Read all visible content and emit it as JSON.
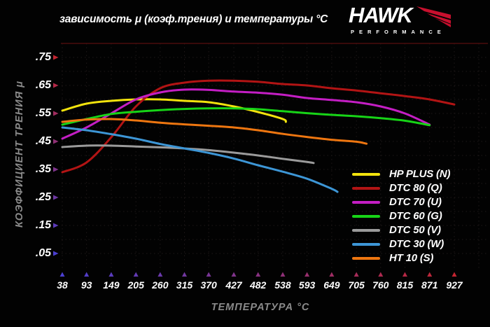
{
  "logo": {
    "brand": "HAWK",
    "subtext": "PERFORMANCE"
  },
  "layout_colors": {
    "background": "#020202",
    "grid": "#1e1818",
    "top_border": "#4a0d0d",
    "axis_red": "#c42531",
    "axis_purple": "#8c2da0",
    "axis_blue": "#4b3fd1",
    "axis_title_gray": "#8a8a8a",
    "logo_red": "#c8102e"
  },
  "chart_data": {
    "type": "line",
    "title": "зависимость μ (коэф.трения) и температуры °C",
    "xlabel": "ТЕМПЕРАТУРА °C",
    "ylabel": "КОЭФФИЦИЕНТ ТРЕНИЯ μ",
    "x_ticks": [
      38,
      93,
      149,
      205,
      260,
      315,
      370,
      427,
      482,
      538,
      593,
      649,
      705,
      760,
      815,
      871,
      927
    ],
    "y_tick_labels": [
      ".75",
      ".65",
      ".55",
      ".45",
      ".35",
      ".25",
      ".15",
      ".05"
    ],
    "xlim": [
      38,
      1000
    ],
    "ylim": [
      0.0,
      0.8
    ],
    "grid": true,
    "legend_position": "bottom-right",
    "series": [
      {
        "name": "HP PLUS (N)",
        "color": "#f2e30d",
        "points": [
          [
            38,
            0.56
          ],
          [
            93,
            0.585
          ],
          [
            149,
            0.595
          ],
          [
            205,
            0.6
          ],
          [
            260,
            0.6
          ],
          [
            315,
            0.595
          ],
          [
            370,
            0.59
          ],
          [
            427,
            0.575
          ],
          [
            482,
            0.555
          ],
          [
            538,
            0.53
          ],
          [
            545,
            0.52
          ]
        ]
      },
      {
        "name": "DTC 80 (Q)",
        "color": "#b21414",
        "points": [
          [
            38,
            0.34
          ],
          [
            93,
            0.375
          ],
          [
            149,
            0.465
          ],
          [
            205,
            0.575
          ],
          [
            260,
            0.64
          ],
          [
            315,
            0.66
          ],
          [
            370,
            0.667
          ],
          [
            427,
            0.667
          ],
          [
            482,
            0.663
          ],
          [
            538,
            0.655
          ],
          [
            593,
            0.65
          ],
          [
            649,
            0.64
          ],
          [
            705,
            0.632
          ],
          [
            760,
            0.622
          ],
          [
            815,
            0.612
          ],
          [
            871,
            0.6
          ],
          [
            927,
            0.582
          ]
        ]
      },
      {
        "name": "DTC 70 (U)",
        "color": "#c41ec4",
        "points": [
          [
            38,
            0.46
          ],
          [
            93,
            0.5
          ],
          [
            149,
            0.55
          ],
          [
            205,
            0.6
          ],
          [
            260,
            0.625
          ],
          [
            315,
            0.635
          ],
          [
            370,
            0.634
          ],
          [
            427,
            0.628
          ],
          [
            482,
            0.624
          ],
          [
            538,
            0.617
          ],
          [
            593,
            0.605
          ],
          [
            649,
            0.598
          ],
          [
            705,
            0.59
          ],
          [
            760,
            0.575
          ],
          [
            815,
            0.55
          ],
          [
            871,
            0.51
          ]
        ]
      },
      {
        "name": "DTC 60 (G)",
        "color": "#17d417",
        "points": [
          [
            38,
            0.51
          ],
          [
            93,
            0.53
          ],
          [
            149,
            0.548
          ],
          [
            205,
            0.556
          ],
          [
            260,
            0.562
          ],
          [
            315,
            0.566
          ],
          [
            370,
            0.568
          ],
          [
            427,
            0.568
          ],
          [
            482,
            0.565
          ],
          [
            538,
            0.558
          ],
          [
            593,
            0.551
          ],
          [
            649,
            0.545
          ],
          [
            705,
            0.54
          ],
          [
            760,
            0.533
          ],
          [
            815,
            0.524
          ],
          [
            871,
            0.508
          ]
        ]
      },
      {
        "name": "DTC 50 (V)",
        "color": "#9b9b9b",
        "points": [
          [
            38,
            0.43
          ],
          [
            93,
            0.435
          ],
          [
            149,
            0.435
          ],
          [
            205,
            0.432
          ],
          [
            260,
            0.429
          ],
          [
            315,
            0.425
          ],
          [
            370,
            0.419
          ],
          [
            427,
            0.41
          ],
          [
            482,
            0.4
          ],
          [
            538,
            0.388
          ],
          [
            593,
            0.377
          ],
          [
            608,
            0.373
          ]
        ]
      },
      {
        "name": "DTC 30 (W)",
        "color": "#3d96d6",
        "points": [
          [
            38,
            0.5
          ],
          [
            93,
            0.49
          ],
          [
            149,
            0.476
          ],
          [
            205,
            0.46
          ],
          [
            260,
            0.441
          ],
          [
            315,
            0.425
          ],
          [
            370,
            0.409
          ],
          [
            427,
            0.389
          ],
          [
            482,
            0.365
          ],
          [
            538,
            0.342
          ],
          [
            593,
            0.317
          ],
          [
            649,
            0.281
          ],
          [
            662,
            0.27
          ]
        ]
      },
      {
        "name": "HT 10 (S)",
        "color": "#ee7610",
        "points": [
          [
            38,
            0.52
          ],
          [
            93,
            0.528
          ],
          [
            149,
            0.53
          ],
          [
            205,
            0.525
          ],
          [
            260,
            0.517
          ],
          [
            315,
            0.511
          ],
          [
            370,
            0.506
          ],
          [
            427,
            0.5
          ],
          [
            482,
            0.49
          ],
          [
            538,
            0.477
          ],
          [
            593,
            0.466
          ],
          [
            649,
            0.456
          ],
          [
            705,
            0.449
          ],
          [
            728,
            0.442
          ]
        ]
      }
    ]
  }
}
